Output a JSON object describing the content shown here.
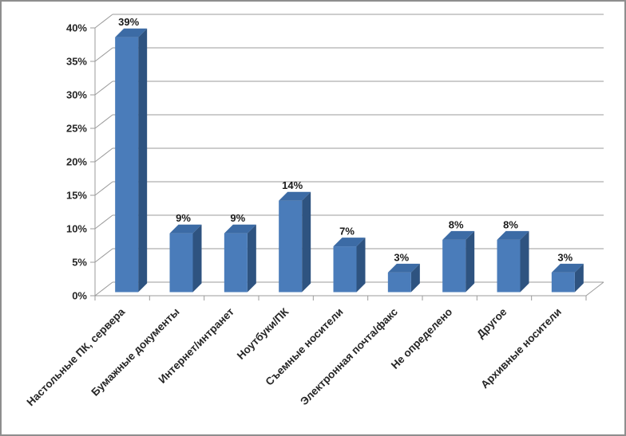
{
  "chart_data": {
    "type": "bar",
    "style": "3d-column",
    "title": "",
    "xlabel": "",
    "ylabel": "",
    "categories": [
      "Настольные ПК, сервера",
      "Бумажные документы",
      "Интернет/интранет",
      "Ноутбуки/ПК",
      "Съемные носители",
      "Электронная почта/факс",
      "Не определено",
      "Другое",
      "Архивные носители"
    ],
    "values": [
      39,
      9,
      9,
      14,
      7,
      3,
      8,
      8,
      3
    ],
    "value_labels": [
      "39%",
      "9%",
      "9%",
      "14%",
      "7%",
      "3%",
      "8%",
      "8%",
      "3%"
    ],
    "ylim": [
      0,
      40
    ],
    "ytick_step": 5,
    "ytick_labels": [
      "0%",
      "5%",
      "10%",
      "15%",
      "20%",
      "25%",
      "30%",
      "35%",
      "40%"
    ],
    "grid": true,
    "legend": "none",
    "colors": {
      "bar_front": "#4A7CBA",
      "bar_top": "#3C6BA5",
      "bar_side": "#2E5380",
      "gridline": "#9B9B9B",
      "axis": "#9B9B9B",
      "axis_text": "#262626",
      "value_text": "#1A1A1A",
      "background": "#FFFFFF",
      "frame_border": "#8E8E8E"
    }
  }
}
